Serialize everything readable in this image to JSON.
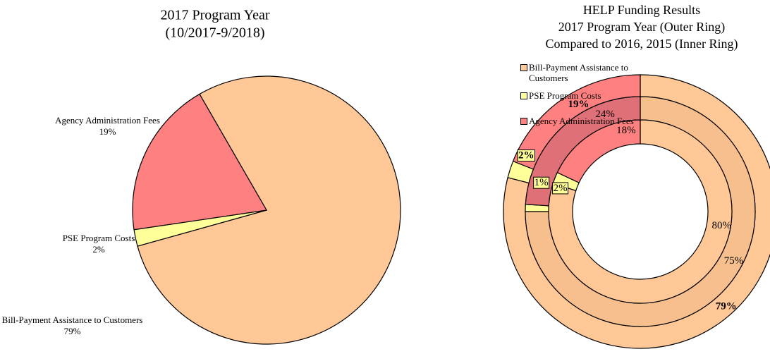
{
  "chart_data": [
    {
      "type": "pie",
      "title": "2017 Program Year",
      "subtitle": "(10/2017-9/2018)",
      "categories": [
        "Bill-Payment Assistance to Customers",
        "PSE Program Costs",
        "Agency Administration Fees"
      ],
      "values": [
        79,
        2,
        19
      ],
      "value_labels": [
        "79%",
        "2%",
        "19%"
      ],
      "colors": [
        "#ffc896",
        "#ffff99",
        "#ff8080"
      ]
    },
    {
      "type": "rings",
      "title": [
        "HELP Funding Results",
        "2017 Program Year (Outer Ring)",
        "Compared to 2016, 2015 (Inner Ring)"
      ],
      "categories": [
        "Bill-Payment Assistance to Customers",
        "PSE Program Costs",
        "Agency Administration Fees"
      ],
      "series": [
        {
          "colors": [
            "#ffc896",
            "#ffff99",
            "#ff8080"
          ],
          "values": [
            79,
            2,
            19
          ],
          "value_labels": [
            "79%",
            "2%",
            "19%"
          ]
        },
        {
          "colors": [
            "#f8bf8e",
            "#ffff99",
            "#e07078"
          ],
          "values": [
            75,
            1,
            24
          ],
          "value_labels": [
            "75%",
            "1%",
            "24%"
          ]
        },
        {
          "colors": [
            "#ffc896",
            "#ffff99",
            "#ff8080"
          ],
          "values": [
            80,
            2,
            18
          ],
          "value_labels": [
            "80%",
            "2%",
            "18%"
          ]
        }
      ],
      "legend": "top-left"
    }
  ]
}
